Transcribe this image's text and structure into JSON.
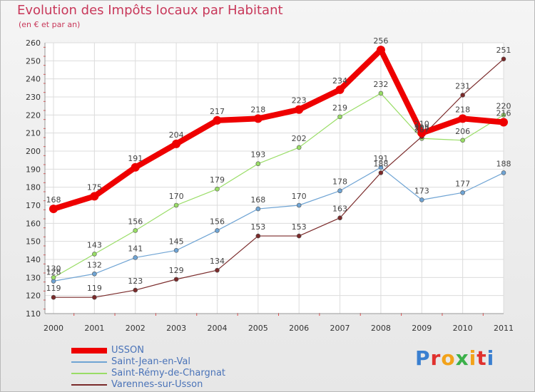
{
  "header": {
    "title": "Evolution des Impôts locaux par Habitant",
    "subtitle": "(en € et par an)"
  },
  "branding": {
    "logo_text": "Proxiti"
  },
  "chart_data": {
    "type": "line",
    "title": "Evolution des Impôts locaux par Habitant",
    "subtitle": "(en € et par an)",
    "xlabel": "",
    "ylabel": "",
    "x": [
      "2000",
      "2001",
      "2002",
      "2003",
      "2004",
      "2005",
      "2006",
      "2007",
      "2008",
      "2009",
      "2010",
      "2011"
    ],
    "ylim": [
      110,
      260
    ],
    "yticks": [
      110,
      120,
      130,
      140,
      150,
      160,
      170,
      180,
      190,
      200,
      210,
      220,
      230,
      240,
      250,
      260
    ],
    "grid": true,
    "legend_position": "bottom-left",
    "series": [
      {
        "name": "USSON",
        "color": "#ee0000",
        "values": [
          168,
          175,
          191,
          204,
          217,
          218,
          223,
          234,
          256,
          210,
          218,
          216
        ]
      },
      {
        "name": "Saint-Jean-en-Val",
        "color": "#6fa4d4",
        "values": [
          128,
          132,
          141,
          145,
          156,
          168,
          170,
          178,
          191,
          173,
          177,
          188
        ]
      },
      {
        "name": "Saint-Rémy-de-Chargnat",
        "color": "#99dd66",
        "values": [
          130,
          143,
          156,
          170,
          179,
          193,
          202,
          219,
          232,
          207,
          206,
          220
        ]
      },
      {
        "name": "Varennes-sur-Usson",
        "color": "#7a2a2a",
        "values": [
          119,
          119,
          123,
          129,
          134,
          153,
          153,
          163,
          188,
          208,
          231,
          251
        ]
      }
    ]
  }
}
